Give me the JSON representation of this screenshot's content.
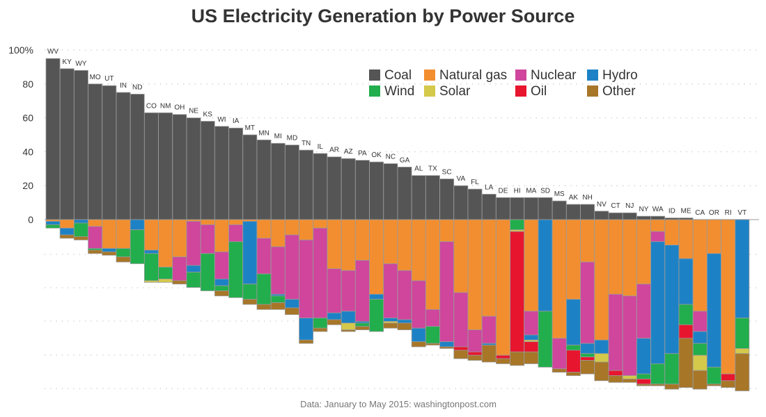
{
  "chart_data": {
    "type": "bar",
    "title": "US Electricity Generation by Power Source",
    "source": "Data: January to May 2015: washingtonpost.com",
    "ylim": [
      0,
      100
    ],
    "yticks": [
      {
        "value": 100,
        "label": "100%"
      },
      {
        "value": 80,
        "label": "80"
      },
      {
        "value": 60,
        "label": "60"
      },
      {
        "value": 40,
        "label": "40"
      },
      {
        "value": 20,
        "label": "20"
      },
      {
        "value": 0,
        "label": "0"
      }
    ],
    "legend_position": "top-right",
    "sources": [
      {
        "key": "coal",
        "name": "Coal",
        "color": "#555555"
      },
      {
        "key": "gas",
        "name": "Natural gas",
        "color": "#F28E30"
      },
      {
        "key": "nuclear",
        "name": "Nuclear",
        "color": "#CF469C"
      },
      {
        "key": "hydro",
        "name": "Hydro",
        "color": "#1D82C5"
      },
      {
        "key": "wind",
        "name": "Wind",
        "color": "#22AE4C"
      },
      {
        "key": "solar",
        "name": "Solar",
        "color": "#D4C94A"
      },
      {
        "key": "oil",
        "name": "Oil",
        "color": "#E8152E"
      },
      {
        "key": "other",
        "name": "Other",
        "color": "#A77627"
      }
    ],
    "states": [
      {
        "state": "WV",
        "coal": 95,
        "gas": 1,
        "hydro": 2,
        "wind": 2
      },
      {
        "state": "KY",
        "coal": 89,
        "gas": 5,
        "hydro": 4,
        "other": 2
      },
      {
        "state": "WY",
        "coal": 88,
        "hydro": 2,
        "wind": 8,
        "other": 2
      },
      {
        "state": "MO",
        "coal": 80,
        "gas": 4,
        "nuclear": 13,
        "wind": 1,
        "other": 2
      },
      {
        "state": "UT",
        "coal": 79,
        "gas": 17,
        "hydro": 2,
        "other": 2
      },
      {
        "state": "IN",
        "coal": 75,
        "gas": 17,
        "wind": 5,
        "other": 3
      },
      {
        "state": "ND",
        "coal": 74,
        "hydro": 6,
        "wind": 20
      },
      {
        "state": "CO",
        "coal": 63,
        "gas": 18,
        "hydro": 2,
        "wind": 16,
        "solar": 1
      },
      {
        "state": "NM",
        "coal": 63,
        "gas": 28,
        "wind": 7,
        "solar": 2
      },
      {
        "state": "OH",
        "coal": 62,
        "gas": 22,
        "nuclear": 14,
        "other": 2
      },
      {
        "state": "NE",
        "coal": 60,
        "gas": 1,
        "nuclear": 26,
        "hydro": 4,
        "wind": 9
      },
      {
        "state": "KS",
        "coal": 58,
        "gas": 3,
        "nuclear": 17,
        "wind": 22
      },
      {
        "state": "WI",
        "coal": 55,
        "gas": 19,
        "nuclear": 16,
        "hydro": 4,
        "wind": 3,
        "other": 3
      },
      {
        "state": "IA",
        "coal": 54,
        "gas": 3,
        "nuclear": 10,
        "wind": 33
      },
      {
        "state": "MT",
        "coal": 50,
        "gas": 1,
        "hydro": 37,
        "wind": 9,
        "other": 3
      },
      {
        "state": "MN",
        "coal": 47,
        "gas": 11,
        "nuclear": 21,
        "wind": 18,
        "other": 3
      },
      {
        "state": "MI",
        "coal": 45,
        "gas": 16,
        "nuclear": 28,
        "hydro": 1,
        "wind": 4,
        "other": 4
      },
      {
        "state": "MD",
        "coal": 44,
        "gas": 9,
        "nuclear": 38,
        "hydro": 5,
        "other": 4
      },
      {
        "state": "TN",
        "coal": 41,
        "gas": 12,
        "nuclear": 46,
        "hydro": 13,
        "other": 2
      },
      {
        "state": "IL",
        "coal": 39,
        "gas": 5,
        "nuclear": 53,
        "wind": 6,
        "other": 2
      },
      {
        "state": "AR",
        "coal": 37,
        "gas": 29,
        "nuclear": 26,
        "hydro": 4,
        "other": 3
      },
      {
        "state": "AZ",
        "coal": 36,
        "gas": 30,
        "nuclear": 24,
        "hydro": 7,
        "solar": 4,
        "other": 1
      },
      {
        "state": "PA",
        "coal": 35,
        "gas": 24,
        "nuclear": 36,
        "hydro": 1,
        "wind": 2,
        "other": 2
      },
      {
        "state": "OK",
        "coal": 34,
        "gas": 44,
        "hydro": 3,
        "wind": 19
      },
      {
        "state": "NC",
        "coal": 33,
        "gas": 26,
        "nuclear": 32,
        "hydro": 2,
        "solar": 1,
        "other": 3
      },
      {
        "state": "GA",
        "coal": 31,
        "gas": 30,
        "nuclear": 29,
        "hydro": 2,
        "other": 4
      },
      {
        "state": "AL",
        "coal": 26,
        "gas": 36,
        "nuclear": 28,
        "hydro": 8,
        "other": 3
      },
      {
        "state": "TX",
        "coal": 26,
        "gas": 53,
        "nuclear": 10,
        "wind": 10,
        "other": 1
      },
      {
        "state": "SC",
        "coal": 24,
        "gas": 13,
        "nuclear": 59,
        "hydro": 3,
        "other": 1
      },
      {
        "state": "VA",
        "coal": 20,
        "gas": 43,
        "nuclear": 32,
        "oil": 2,
        "other": 5
      },
      {
        "state": "FL",
        "coal": 18,
        "gas": 65,
        "nuclear": 13,
        "oil": 2,
        "other": 3
      },
      {
        "state": "LA",
        "coal": 15,
        "gas": 57,
        "nuclear": 16,
        "hydro": 1,
        "other": 10
      },
      {
        "state": "DE",
        "coal": 13,
        "gas": 80,
        "oil": 2,
        "other": 3
      },
      {
        "state": "HI",
        "coal": 13,
        "wind": 6,
        "solar": 1,
        "oil": 71,
        "other": 8
      },
      {
        "state": "MA",
        "coal": 13,
        "gas": 54,
        "nuclear": 14,
        "hydro": 3,
        "solar": 1,
        "oil": 6,
        "other": 7
      },
      {
        "state": "SD",
        "coal": 13,
        "hydro": 54,
        "wind": 33
      },
      {
        "state": "MS",
        "coal": 11,
        "gas": 70,
        "nuclear": 18,
        "other": 2
      },
      {
        "state": "AK",
        "coal": 9,
        "gas": 47,
        "hydro": 27,
        "wind": 3,
        "oil": 13,
        "other": 2
      },
      {
        "state": "NH",
        "coal": 9,
        "gas": 25,
        "nuclear": 48,
        "hydro": 6,
        "wind": 2,
        "oil": 2,
        "other": 8
      },
      {
        "state": "NV",
        "coal": 5,
        "gas": 71,
        "hydro": 8,
        "solar": 5,
        "other": 11
      },
      {
        "state": "CT",
        "coal": 4,
        "gas": 44,
        "nuclear": 45,
        "oil": 3,
        "other": 4
      },
      {
        "state": "NJ",
        "coal": 4,
        "gas": 45,
        "nuclear": 47,
        "solar": 2,
        "other": 2
      },
      {
        "state": "NY",
        "coal": 2,
        "gas": 38,
        "nuclear": 32,
        "hydro": 21,
        "wind": 3,
        "oil": 3,
        "other": 1
      },
      {
        "state": "WA",
        "coal": 2,
        "gas": 7,
        "nuclear": 6,
        "hydro": 72,
        "wind": 12,
        "other": 1
      },
      {
        "state": "ID",
        "coal": 1,
        "gas": 15,
        "hydro": 64,
        "wind": 18,
        "other": 3
      },
      {
        "state": "ME",
        "coal": 1,
        "gas": 23,
        "hydro": 27,
        "wind": 12,
        "oil": 8,
        "other": 29
      },
      {
        "state": "CA",
        "coal": 0,
        "gas": 54,
        "nuclear": 12,
        "hydro": 7,
        "wind": 7,
        "solar": 9,
        "other": 11
      },
      {
        "state": "OR",
        "coal": 0,
        "gas": 20,
        "hydro": 67,
        "wind": 10,
        "other": 1
      },
      {
        "state": "RI",
        "coal": 0,
        "gas": 91,
        "oil": 4,
        "other": 4
      },
      {
        "state": "VT",
        "coal": 0,
        "hydro": 58,
        "wind": 18,
        "solar": 3,
        "other": 22
      }
    ]
  }
}
